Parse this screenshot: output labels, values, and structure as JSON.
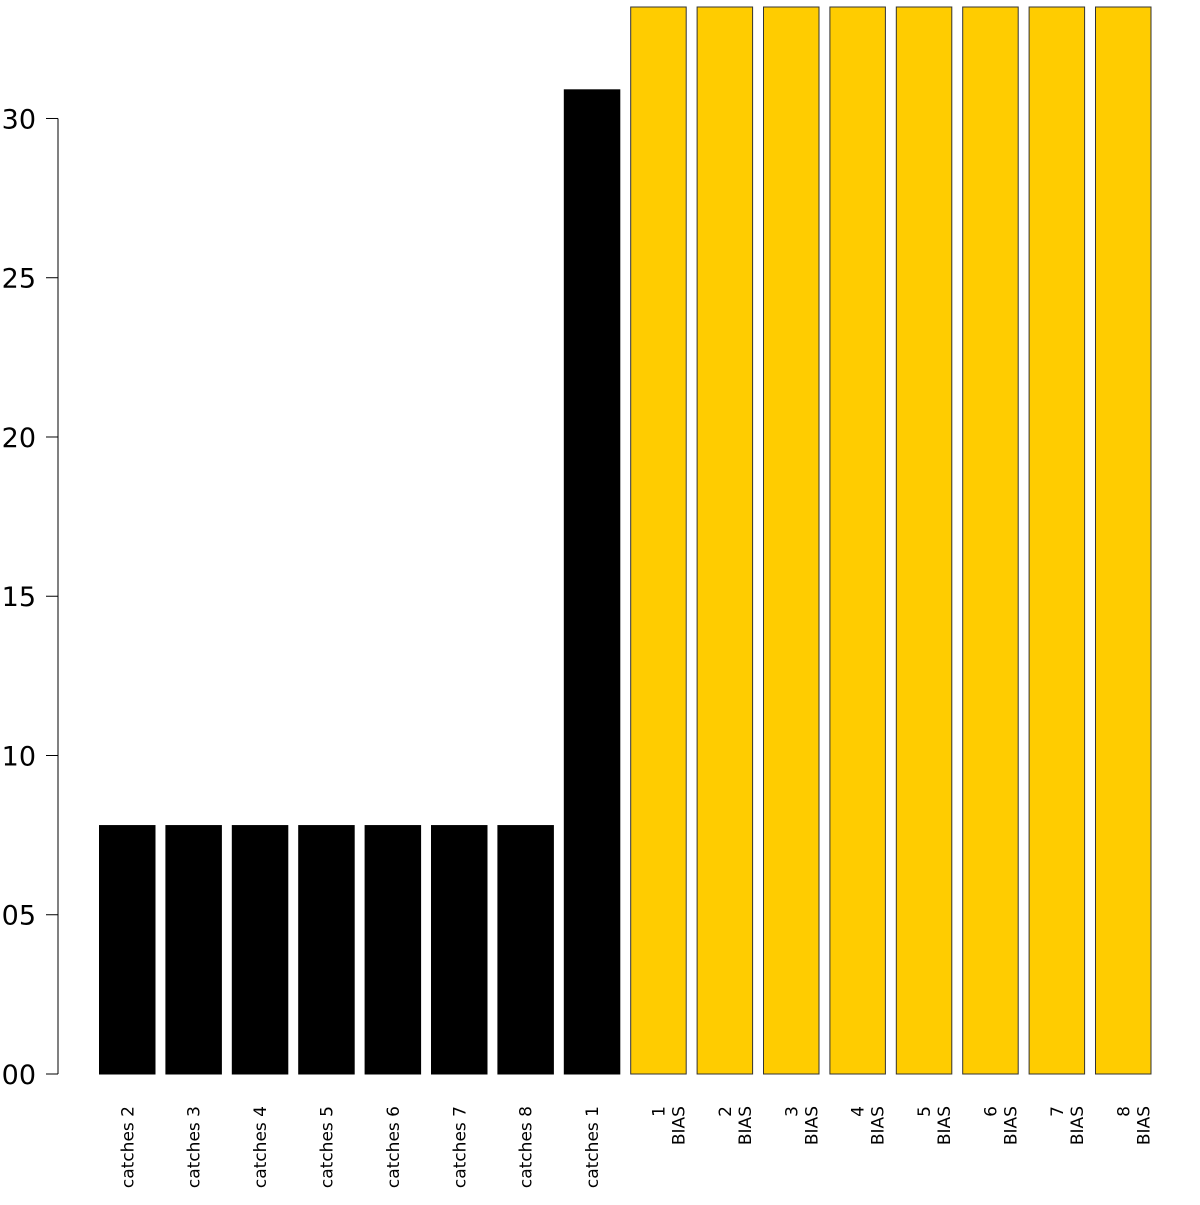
{
  "chart_data": {
    "type": "bar",
    "y_tick_labels": [
      "00",
      "05",
      "10",
      "15",
      "20",
      "25",
      "30"
    ],
    "y_tick_values": [
      0.0,
      0.05,
      0.1,
      0.15,
      0.2,
      0.25,
      0.3
    ],
    "ylim": [
      0.0,
      0.335
    ],
    "grid": false,
    "legend": "none",
    "categories": [
      [
        "catches 2"
      ],
      [
        "catches 3"
      ],
      [
        "catches 4"
      ],
      [
        "catches 5"
      ],
      [
        "catches 6"
      ],
      [
        "catches 7"
      ],
      [
        "catches 8"
      ],
      [
        "catches 1"
      ],
      [
        "1",
        "BIAS"
      ],
      [
        "2",
        "BIAS"
      ],
      [
        "3",
        "BIAS"
      ],
      [
        "4",
        "BIAS"
      ],
      [
        "5",
        "BIAS"
      ],
      [
        "6",
        "BIAS"
      ],
      [
        "7",
        "BIAS"
      ],
      [
        "8",
        "BIAS"
      ]
    ],
    "values": [
      0.078,
      0.078,
      0.078,
      0.078,
      0.078,
      0.078,
      0.078,
      0.309,
      0.335,
      0.335,
      0.335,
      0.335,
      0.335,
      0.335,
      0.335,
      0.335
    ],
    "colors": {
      "catches": "#000000",
      "bias": "#FFCC00",
      "bias_outline": "#333333"
    },
    "bar_color_groups": [
      "catches",
      "catches",
      "catches",
      "catches",
      "catches",
      "catches",
      "catches",
      "catches",
      "bias",
      "bias",
      "bias",
      "bias",
      "bias",
      "bias",
      "bias",
      "bias"
    ]
  }
}
